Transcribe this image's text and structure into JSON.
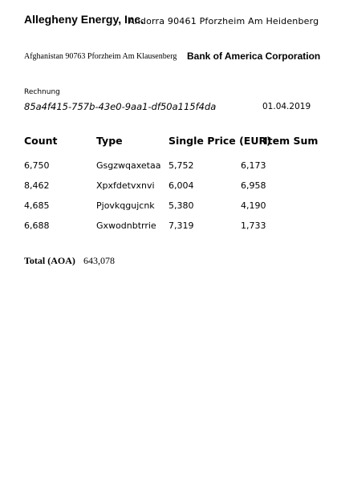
{
  "sender": {
    "name": "Allegheny Energy, Inc.",
    "address": "Andorra 90461 Pforzheim Am Heidenberg"
  },
  "recipient": {
    "address": "Afghanistan 90763 Pforzheim Am Klausenberg",
    "name": "Bank of America Corporation"
  },
  "document": {
    "label": "Rechnung",
    "id": "85a4f415-757b-43e0-9aa1-df50a115f4da",
    "date": "01.04.2019"
  },
  "table": {
    "headers": [
      "Count",
      "Type",
      "Single Price (EUR)",
      "Item Sum"
    ],
    "rows": [
      [
        "6,750",
        "Gsgzwqaxetaa",
        "5,752",
        "6,173"
      ],
      [
        "8,462",
        "Xpxfdetvxnvi",
        "6,004",
        "6,958"
      ],
      [
        "4,685",
        "Pjovkqgujcnk",
        "5,380",
        "4,190"
      ],
      [
        "6,688",
        "Gxwodnbtrrie",
        "7,319",
        "1,733"
      ]
    ]
  },
  "total": {
    "label": "Total (AOA)",
    "value": "643,078"
  }
}
